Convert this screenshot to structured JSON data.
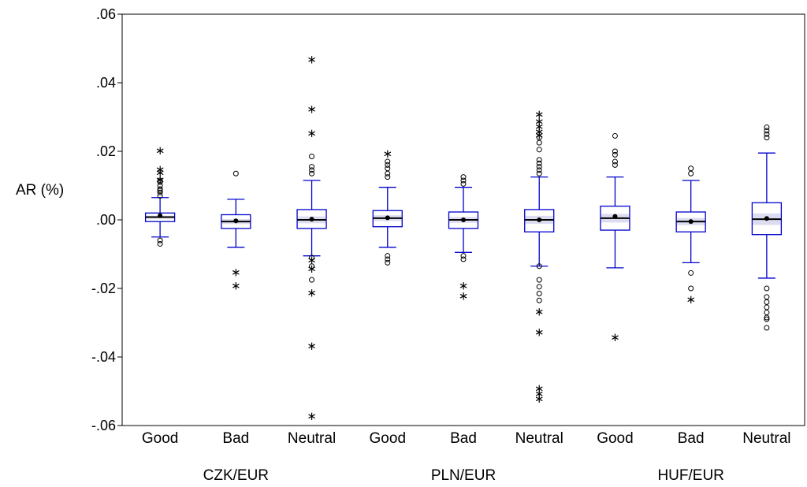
{
  "chart_data": {
    "type": "boxplot",
    "ylabel": "AR (%)",
    "ylim": [
      -0.06,
      0.06
    ],
    "yticks": [
      0.06,
      0.04,
      0.02,
      0.0,
      -0.02,
      -0.04,
      -0.06
    ],
    "ytick_labels": [
      ".06",
      ".04",
      ".02",
      ".00",
      "-.02",
      "-.04",
      "-.06"
    ],
    "colors": {
      "box": "#0000cc",
      "box_fill": "#dcdcf0",
      "median": "#000000",
      "outlier": "#000000"
    },
    "groups": [
      {
        "label": "CZK/EUR",
        "boxes": [
          {
            "label": "Good",
            "whisker_low": -0.005,
            "q1": -0.0005,
            "median": 0.0008,
            "q3": 0.002,
            "whisker_high": 0.0065,
            "mean": 0.0012,
            "outliers_circle": [
              -0.006,
              -0.007,
              0.007,
              0.008,
              0.0085,
              0.009,
              0.01,
              0.011,
              0.0115
            ],
            "outliers_star": [
              0.012,
              0.014,
              0.015,
              0.0205
            ]
          },
          {
            "label": "Bad",
            "whisker_low": -0.008,
            "q1": -0.0025,
            "median": -0.0005,
            "q3": 0.0015,
            "whisker_high": 0.006,
            "mean": -0.0003,
            "outliers_circle": [
              0.0135
            ],
            "outliers_star": [
              -0.015,
              -0.019
            ]
          },
          {
            "label": "Neutral",
            "whisker_low": -0.0105,
            "q1": -0.0025,
            "median": 0.0,
            "q3": 0.003,
            "whisker_high": 0.0115,
            "mean": 0.0002,
            "outliers_circle": [
              -0.011,
              -0.0135,
              -0.0175,
              0.0135,
              0.0145,
              0.0155,
              0.0185
            ],
            "outliers_star": [
              -0.0115,
              -0.014,
              -0.021,
              -0.0365,
              -0.057,
              0.0255,
              0.0325,
              0.047
            ]
          }
        ]
      },
      {
        "label": "PLN/EUR",
        "boxes": [
          {
            "label": "Good",
            "whisker_low": -0.008,
            "q1": -0.002,
            "median": 0.0005,
            "q3": 0.0027,
            "whisker_high": 0.0095,
            "mean": 0.0006,
            "outliers_circle": [
              -0.0105,
              -0.0115,
              -0.0125,
              0.0125,
              0.0135,
              0.015,
              0.016,
              0.017
            ],
            "outliers_star": [
              0.0195
            ]
          },
          {
            "label": "Bad",
            "whisker_low": -0.0095,
            "q1": -0.0025,
            "median": 0.0,
            "q3": 0.0023,
            "whisker_high": 0.0095,
            "mean": 0.0,
            "outliers_circle": [
              -0.0105,
              -0.0115,
              0.0105,
              0.0115,
              0.0125
            ],
            "outliers_star": [
              -0.019,
              -0.022
            ]
          },
          {
            "label": "Neutral",
            "whisker_low": -0.0135,
            "q1": -0.0035,
            "median": 0.0,
            "q3": 0.003,
            "whisker_high": 0.0125,
            "mean": 0.0,
            "outliers_circle": [
              -0.0135,
              -0.0175,
              -0.0195,
              -0.0215,
              -0.0235,
              0.0135,
              0.0145,
              0.0155,
              0.0165,
              0.0175,
              0.0205,
              0.0225,
              0.024
            ],
            "outliers_star": [
              -0.0265,
              -0.0325,
              -0.049,
              -0.0505,
              -0.052,
              0.025,
              0.026,
              0.0275,
              0.029,
              0.031
            ]
          }
        ]
      },
      {
        "label": "HUF/EUR",
        "boxes": [
          {
            "label": "Good",
            "whisker_low": -0.014,
            "q1": -0.003,
            "median": 0.0005,
            "q3": 0.004,
            "whisker_high": 0.0125,
            "mean": 0.001,
            "outliers_circle": [
              0.016,
              0.017,
              0.019,
              0.02,
              0.0245
            ],
            "outliers_star": [
              -0.034
            ]
          },
          {
            "label": "Bad",
            "whisker_low": -0.0125,
            "q1": -0.0035,
            "median": -0.0005,
            "q3": 0.0023,
            "whisker_high": 0.0115,
            "mean": -0.0005,
            "outliers_circle": [
              -0.0155,
              -0.02,
              0.0135,
              0.015
            ],
            "outliers_star": [
              -0.023
            ]
          },
          {
            "label": "Neutral",
            "whisker_low": -0.017,
            "q1": -0.0043,
            "median": 0.0002,
            "q3": 0.005,
            "whisker_high": 0.0195,
            "mean": 0.0004,
            "outliers_circle": [
              -0.02,
              -0.0225,
              -0.024,
              -0.0255,
              -0.027,
              -0.0285,
              -0.029,
              -0.0315,
              0.024,
              0.025,
              0.026,
              0.027
            ],
            "outliers_star": []
          }
        ]
      }
    ]
  }
}
